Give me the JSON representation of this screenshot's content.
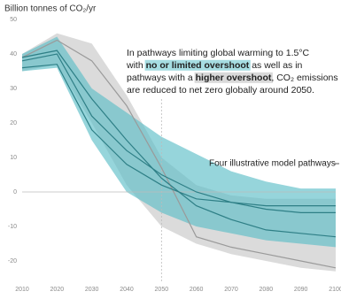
{
  "chart_data": {
    "type": "range-lines",
    "title": "Billion tonnes of CO₂/yr",
    "x": [
      2010,
      2020,
      2030,
      2040,
      2050,
      2060,
      2070,
      2080,
      2090,
      2100
    ],
    "xlim": [
      2010,
      2100
    ],
    "xticks": [
      2010,
      2020,
      2030,
      2040,
      2050,
      2060,
      2070,
      2080,
      2090,
      2100
    ],
    "ylim": [
      -20,
      50
    ],
    "yticks": [
      -20,
      -10,
      0,
      10,
      20,
      30,
      40,
      50
    ],
    "vline": 2050,
    "bands": [
      {
        "color": "#cfcfcf",
        "upper": [
          40,
          46,
          43,
          28,
          10,
          2,
          -1,
          -2,
          -2,
          -2
        ],
        "lower": [
          35,
          37,
          20,
          2,
          -10,
          -15,
          -18,
          -20,
          -22,
          -23
        ]
      },
      {
        "color": "#5dbfc7",
        "upper": [
          40,
          45,
          30,
          23,
          16,
          11,
          6,
          3,
          1,
          1
        ],
        "lower": [
          35,
          36,
          15,
          0,
          -6,
          -10,
          -12,
          -14,
          -15,
          -16
        ]
      }
    ],
    "series": [
      {
        "color": "#9a9a9a",
        "values": [
          39,
          44,
          38,
          25,
          7,
          -13,
          -16,
          -18,
          -20,
          -22
        ]
      },
      {
        "color": "#2e7f86",
        "values": [
          36,
          37,
          18,
          8,
          2,
          -2,
          -3,
          -4,
          -4,
          -4
        ]
      },
      {
        "color": "#2e7f86",
        "values": [
          38,
          40,
          22,
          12,
          5,
          0,
          -3,
          -5,
          -6,
          -6
        ]
      },
      {
        "color": "#2e7f86",
        "values": [
          39,
          41,
          27,
          15,
          4,
          -4,
          -8,
          -11,
          -12,
          -13
        ]
      }
    ],
    "annotation": [
      [
        {
          "text": "In pathways limiting global warming to 1.5°C"
        }
      ],
      [
        {
          "text": "with "
        },
        {
          "text": "no or limited overshoot",
          "highlight": "#a6dde2"
        },
        {
          "text": " as well as in"
        }
      ],
      [
        {
          "text": "pathways with a "
        },
        {
          "text": "higher overshoot",
          "highlight": "#d9d9d9"
        },
        {
          "text": ", CO₂ emissions"
        }
      ],
      [
        {
          "text": "are reduced to net zero globally around 2050."
        }
      ]
    ],
    "pathways_label": "Four illustrative model pathways"
  }
}
